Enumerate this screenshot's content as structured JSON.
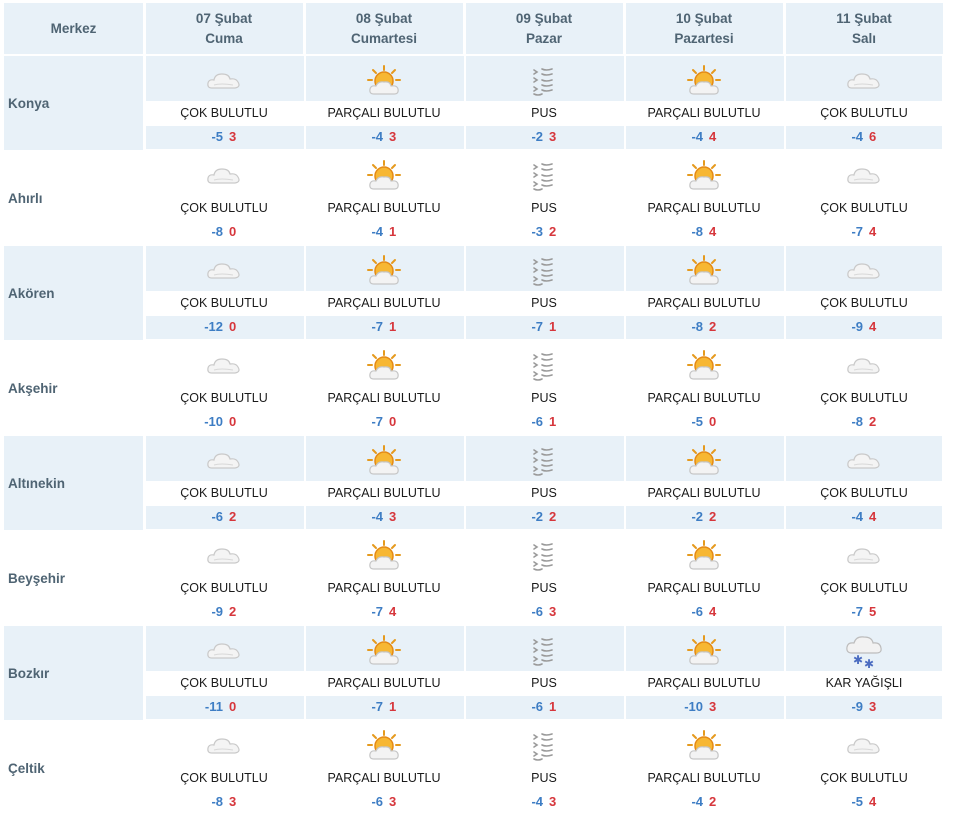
{
  "header": {
    "merkez_label": "Merkez",
    "days": [
      {
        "date": "07 Şubat",
        "weekday": "Cuma"
      },
      {
        "date": "08 Şubat",
        "weekday": "Cumartesi"
      },
      {
        "date": "09 Şubat",
        "weekday": "Pazar"
      },
      {
        "date": "10 Şubat",
        "weekday": "Pazartesi"
      },
      {
        "date": "11 Şubat",
        "weekday": "Salı"
      }
    ]
  },
  "icons": {
    "ÇOK BULUTLU": "cloudy-icon",
    "PARÇALI BULUTLU": "partly-cloudy-icon",
    "PUS": "haze-icon",
    "KAR YAĞIŞLI": "snow-icon"
  },
  "colors": {
    "header_bg": "#e8f1f8",
    "min_temp": "#3d7dc4",
    "max_temp": "#d6363c",
    "label": "#4f6473"
  },
  "rows": [
    {
      "city": "Konya",
      "days": [
        {
          "cond": "ÇOK BULUTLU",
          "min": "-5",
          "max": "3"
        },
        {
          "cond": "PARÇALI BULUTLU",
          "min": "-4",
          "max": "3"
        },
        {
          "cond": "PUS",
          "min": "-2",
          "max": "3"
        },
        {
          "cond": "PARÇALI BULUTLU",
          "min": "-4",
          "max": "4"
        },
        {
          "cond": "ÇOK BULUTLU",
          "min": "-4",
          "max": "6"
        }
      ]
    },
    {
      "city": "Ahırlı",
      "days": [
        {
          "cond": "ÇOK BULUTLU",
          "min": "-8",
          "max": "0"
        },
        {
          "cond": "PARÇALI BULUTLU",
          "min": "-4",
          "max": "1"
        },
        {
          "cond": "PUS",
          "min": "-3",
          "max": "2"
        },
        {
          "cond": "PARÇALI BULUTLU",
          "min": "-8",
          "max": "4"
        },
        {
          "cond": "ÇOK BULUTLU",
          "min": "-7",
          "max": "4"
        }
      ]
    },
    {
      "city": "Akören",
      "days": [
        {
          "cond": "ÇOK BULUTLU",
          "min": "-12",
          "max": "0"
        },
        {
          "cond": "PARÇALI BULUTLU",
          "min": "-7",
          "max": "1"
        },
        {
          "cond": "PUS",
          "min": "-7",
          "max": "1"
        },
        {
          "cond": "PARÇALI BULUTLU",
          "min": "-8",
          "max": "2"
        },
        {
          "cond": "ÇOK BULUTLU",
          "min": "-9",
          "max": "4"
        }
      ]
    },
    {
      "city": "Akşehir",
      "days": [
        {
          "cond": "ÇOK BULUTLU",
          "min": "-10",
          "max": "0"
        },
        {
          "cond": "PARÇALI BULUTLU",
          "min": "-7",
          "max": "0"
        },
        {
          "cond": "PUS",
          "min": "-6",
          "max": "1"
        },
        {
          "cond": "PARÇALI BULUTLU",
          "min": "-5",
          "max": "0"
        },
        {
          "cond": "ÇOK BULUTLU",
          "min": "-8",
          "max": "2"
        }
      ]
    },
    {
      "city": "Altınekin",
      "days": [
        {
          "cond": "ÇOK BULUTLU",
          "min": "-6",
          "max": "2"
        },
        {
          "cond": "PARÇALI BULUTLU",
          "min": "-4",
          "max": "3"
        },
        {
          "cond": "PUS",
          "min": "-2",
          "max": "2"
        },
        {
          "cond": "PARÇALI BULUTLU",
          "min": "-2",
          "max": "2"
        },
        {
          "cond": "ÇOK BULUTLU",
          "min": "-4",
          "max": "4"
        }
      ]
    },
    {
      "city": "Beyşehir",
      "days": [
        {
          "cond": "ÇOK BULUTLU",
          "min": "-9",
          "max": "2"
        },
        {
          "cond": "PARÇALI BULUTLU",
          "min": "-7",
          "max": "4"
        },
        {
          "cond": "PUS",
          "min": "-6",
          "max": "3"
        },
        {
          "cond": "PARÇALI BULUTLU",
          "min": "-6",
          "max": "4"
        },
        {
          "cond": "ÇOK BULUTLU",
          "min": "-7",
          "max": "5"
        }
      ]
    },
    {
      "city": "Bozkır",
      "days": [
        {
          "cond": "ÇOK BULUTLU",
          "min": "-11",
          "max": "0"
        },
        {
          "cond": "PARÇALI BULUTLU",
          "min": "-7",
          "max": "1"
        },
        {
          "cond": "PUS",
          "min": "-6",
          "max": "1"
        },
        {
          "cond": "PARÇALI BULUTLU",
          "min": "-10",
          "max": "3"
        },
        {
          "cond": "KAR YAĞIŞLI",
          "min": "-9",
          "max": "3"
        }
      ]
    },
    {
      "city": "Çeltik",
      "days": [
        {
          "cond": "ÇOK BULUTLU",
          "min": "-8",
          "max": "3"
        },
        {
          "cond": "PARÇALI BULUTLU",
          "min": "-6",
          "max": "3"
        },
        {
          "cond": "PUS",
          "min": "-4",
          "max": "3"
        },
        {
          "cond": "PARÇALI BULUTLU",
          "min": "-4",
          "max": "2"
        },
        {
          "cond": "ÇOK BULUTLU",
          "min": "-5",
          "max": "4"
        }
      ]
    }
  ]
}
